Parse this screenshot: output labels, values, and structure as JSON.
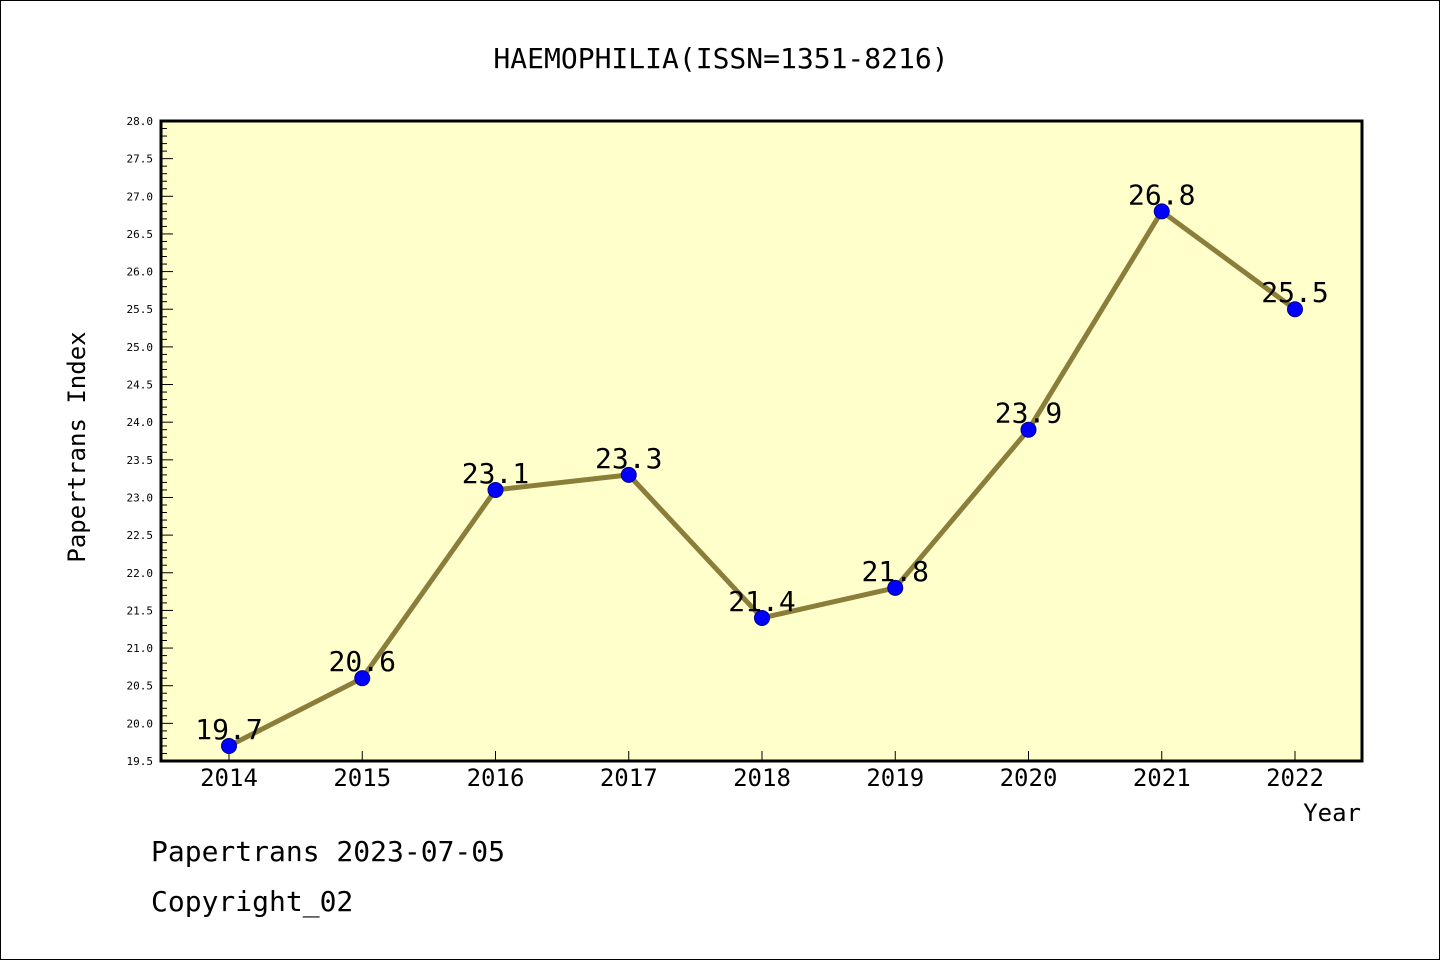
{
  "chart_data": {
    "type": "line",
    "title": "HAEMOPHILIA(ISSN=1351-8216)",
    "xlabel": "Year",
    "ylabel": "Papertrans Index",
    "categories": [
      "2014",
      "2015",
      "2016",
      "2017",
      "2018",
      "2019",
      "2020",
      "2021",
      "2022"
    ],
    "values": [
      19.7,
      20.6,
      23.1,
      23.3,
      21.4,
      21.8,
      23.9,
      26.8,
      25.5
    ],
    "data_labels": [
      "19.7",
      "20.6",
      "23.1",
      "23.3",
      "21.4",
      "21.8",
      "23.9",
      "26.8",
      "25.5"
    ],
    "ylim": [
      19.5,
      28.0
    ],
    "yticks": [
      "19.5",
      "20.0",
      "20.5",
      "21.0",
      "21.5",
      "22.0",
      "22.5",
      "23.0",
      "23.5",
      "24.0",
      "24.5",
      "25.0",
      "25.5",
      "26.0",
      "26.5",
      "27.0",
      "27.5",
      "28.0"
    ],
    "grid": false,
    "legend": "none",
    "colors": {
      "line": "#8b7d3a",
      "marker": "#0000ff",
      "plot_background": "#ffffcc"
    }
  },
  "footer": {
    "line1": "Papertrans 2023-07-05",
    "line2": "Copyright_02"
  }
}
